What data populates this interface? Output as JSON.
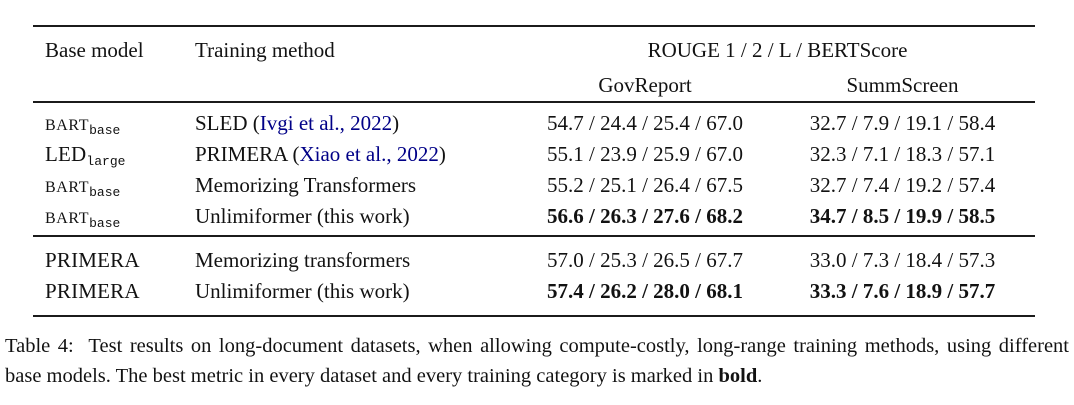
{
  "table": {
    "header": {
      "base_model": "Base model",
      "training_method": "Training method",
      "metrics": "ROUGE 1 / 2 / L / BERTScore",
      "govreport": "GovReport",
      "summscreen": "SummScreen"
    },
    "groups": [
      {
        "rows": [
          {
            "model": "BART",
            "model_sub": "base",
            "small_caps": true,
            "method_pre": "SLED (",
            "method_cite": "Ivgi et al., 2022",
            "method_post": ")",
            "govreport": "54.7 / 24.4 / 25.4 / 67.0",
            "summscreen": "32.7 / 7.9 / 19.1 / 58.4",
            "bold": false
          },
          {
            "model": "LED",
            "model_sub": "large",
            "small_caps": false,
            "method_pre": "PRIMERA (",
            "method_cite": "Xiao et al., 2022",
            "method_post": ")",
            "govreport": "55.1 / 23.9 / 25.9 / 67.0",
            "summscreen": "32.3 / 7.1 / 18.3 / 57.1",
            "bold": false
          },
          {
            "model": "BART",
            "model_sub": "base",
            "small_caps": true,
            "method_pre": "Memorizing Transformers",
            "method_cite": "",
            "method_post": "",
            "govreport": "55.2 / 25.1 / 26.4 / 67.5",
            "summscreen": "32.7 / 7.4 / 19.2 / 57.4",
            "bold": false
          },
          {
            "model": "BART",
            "model_sub": "base",
            "small_caps": true,
            "method_pre": "Unlimiformer (this work)",
            "method_cite": "",
            "method_post": "",
            "govreport": "56.6 / 26.3 / 27.6 / 68.2",
            "summscreen": "34.7 / 8.5 / 19.9 / 58.5",
            "bold": true
          }
        ]
      },
      {
        "rows": [
          {
            "model": "PRIMERA",
            "model_sub": "",
            "small_caps": false,
            "method_pre": "Memorizing transformers",
            "method_cite": "",
            "method_post": "",
            "govreport": "57.0 / 25.3 / 26.5 / 67.7",
            "summscreen": "33.0 / 7.3 / 18.4 / 57.3",
            "bold": false
          },
          {
            "model": "PRIMERA",
            "model_sub": "",
            "small_caps": false,
            "method_pre": "Unlimiformer (this work)",
            "method_cite": "",
            "method_post": "",
            "govreport": "57.4 / 26.2 / 28.0 / 68.1",
            "summscreen": "33.3 / 7.6 / 18.9 / 57.7",
            "bold": true
          }
        ]
      }
    ]
  },
  "caption": {
    "before": "Table 4:  Test results on long-document datasets, when allowing compute-costly, long-range training methods, using different base models. The best metric in every dataset and every training category is marked in ",
    "bold_word": "bold",
    "after": "."
  }
}
